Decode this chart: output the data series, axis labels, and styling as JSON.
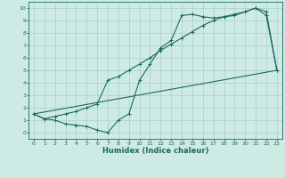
{
  "xlabel": "Humidex (Indice chaleur)",
  "bg_color": "#ceeae4",
  "grid_color": "#a8cfc8",
  "line_color": "#1a6b5a",
  "xlim": [
    -0.5,
    23.5
  ],
  "ylim": [
    -0.5,
    10.5
  ],
  "xticks": [
    0,
    1,
    2,
    3,
    4,
    5,
    6,
    7,
    8,
    9,
    10,
    11,
    12,
    13,
    14,
    15,
    16,
    17,
    18,
    19,
    20,
    21,
    22,
    23
  ],
  "yticks": [
    0,
    1,
    2,
    3,
    4,
    5,
    6,
    7,
    8,
    9,
    10
  ],
  "curve1_x": [
    0,
    1,
    2,
    3,
    4,
    5,
    6,
    7,
    8,
    9,
    10,
    11,
    12,
    13,
    14,
    15,
    16,
    17,
    18,
    19,
    20,
    21,
    22,
    23
  ],
  "curve1_y": [
    1.5,
    1.1,
    1.0,
    0.7,
    0.6,
    0.5,
    0.2,
    0.0,
    1.0,
    1.5,
    4.2,
    5.5,
    6.8,
    7.4,
    9.4,
    9.5,
    9.3,
    9.2,
    9.3,
    9.4,
    9.7,
    10.0,
    9.4,
    5.0
  ],
  "curve2_x": [
    0,
    1,
    2,
    3,
    4,
    5,
    6,
    7,
    8,
    9,
    10,
    11,
    12,
    13,
    14,
    15,
    16,
    17,
    18,
    19,
    20,
    21,
    22,
    23
  ],
  "curve2_y": [
    1.5,
    1.1,
    1.3,
    1.5,
    1.7,
    2.0,
    2.3,
    4.2,
    4.5,
    5.0,
    5.5,
    6.0,
    6.6,
    7.1,
    7.6,
    8.1,
    8.6,
    9.0,
    9.3,
    9.5,
    9.7,
    10.0,
    9.7,
    5.0
  ],
  "curve3_x": [
    0,
    23
  ],
  "curve3_y": [
    1.5,
    5.0
  ]
}
